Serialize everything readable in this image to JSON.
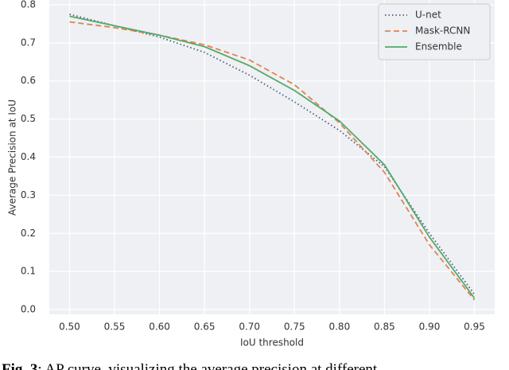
{
  "chart_data": {
    "type": "line",
    "x_label": "IoU threshold",
    "y_label": "Average Precision at IoU",
    "x": [
      0.5,
      0.55,
      0.6,
      0.65,
      0.7,
      0.75,
      0.8,
      0.85,
      0.9,
      0.95
    ],
    "series": [
      {
        "name": "U-net",
        "color": "#4c5f7a",
        "linestyle": "dotted",
        "values": [
          0.775,
          0.745,
          0.715,
          0.675,
          0.615,
          0.545,
          0.47,
          0.375,
          0.2,
          0.04
        ]
      },
      {
        "name": "Mask-RCNN",
        "color": "#dd8452",
        "linestyle": "dashed",
        "values": [
          0.755,
          0.74,
          0.72,
          0.695,
          0.655,
          0.59,
          0.49,
          0.36,
          0.17,
          0.025
        ]
      },
      {
        "name": "Ensemble",
        "color": "#55a868",
        "linestyle": "solid",
        "values": [
          0.77,
          0.745,
          0.72,
          0.69,
          0.64,
          0.575,
          0.495,
          0.38,
          0.19,
          0.03
        ]
      }
    ],
    "xlim": [
      0.4775,
      0.9725
    ],
    "ylim": [
      -0.0125,
      0.8125
    ],
    "xticks": [
      {
        "value": 0.5,
        "label": "0.50"
      },
      0.55,
      {
        "value": 0.6,
        "label": "0.60"
      },
      0.65,
      {
        "value": 0.7,
        "label": "0.70"
      },
      0.75,
      {
        "value": 0.8,
        "label": "0.80"
      },
      0.85,
      {
        "value": 0.9,
        "label": "0.90"
      },
      0.95
    ],
    "yticks": [
      {
        "value": 0,
        "label": "0.0"
      },
      0.1,
      0.2,
      0.3,
      0.4,
      0.5,
      0.6,
      0.7,
      0.8
    ],
    "grid": true,
    "legend": "upper right"
  },
  "caption": {
    "label": "Fig. 3",
    "text": ": AP curve, visualizing the average precision at different"
  }
}
